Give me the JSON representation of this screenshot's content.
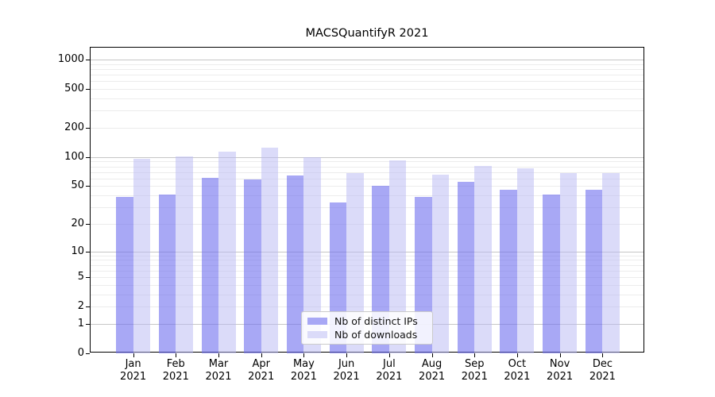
{
  "chart_data": {
    "type": "bar",
    "title": "MACSQuantifyR 2021",
    "year": "2021",
    "months": [
      "Jan",
      "Feb",
      "Mar",
      "Apr",
      "May",
      "Jun",
      "Jul",
      "Aug",
      "Sep",
      "Oct",
      "Nov",
      "Dec"
    ],
    "series": [
      {
        "name": "Nb of distinct IPs",
        "key": "distinct-ips",
        "fill": "rgba(110,110,238,0.6)",
        "legend_color": "#a8a8f5",
        "values": [
          39,
          41,
          61,
          59,
          65,
          34,
          50,
          39,
          55,
          46,
          41,
          46
        ]
      },
      {
        "name": "Nb of downloads",
        "key": "downloads",
        "fill": "rgba(184,184,243,0.5)",
        "legend_color": "#dbdbf9",
        "values": [
          97,
          102,
          114,
          125,
          99,
          68,
          93,
          66,
          81,
          77,
          68,
          68
        ]
      }
    ],
    "xlabel": "",
    "ylabel": "",
    "yscale": "log1p",
    "ylim": [
      0,
      1324
    ],
    "yticks": [
      0,
      1,
      2,
      5,
      10,
      20,
      50,
      100,
      200,
      500,
      1000
    ],
    "grid": {
      "major": [
        1,
        10,
        100,
        1000
      ],
      "minor": [
        2,
        3,
        4,
        5,
        6,
        7,
        8,
        9,
        20,
        30,
        40,
        50,
        60,
        70,
        80,
        90,
        200,
        300,
        400,
        500,
        600,
        700,
        800,
        900
      ]
    },
    "legend_position": "lower-center",
    "axis_color": "#000000",
    "grid_major_color": "#c6c6c6",
    "grid_minor_color": "#ececec"
  }
}
